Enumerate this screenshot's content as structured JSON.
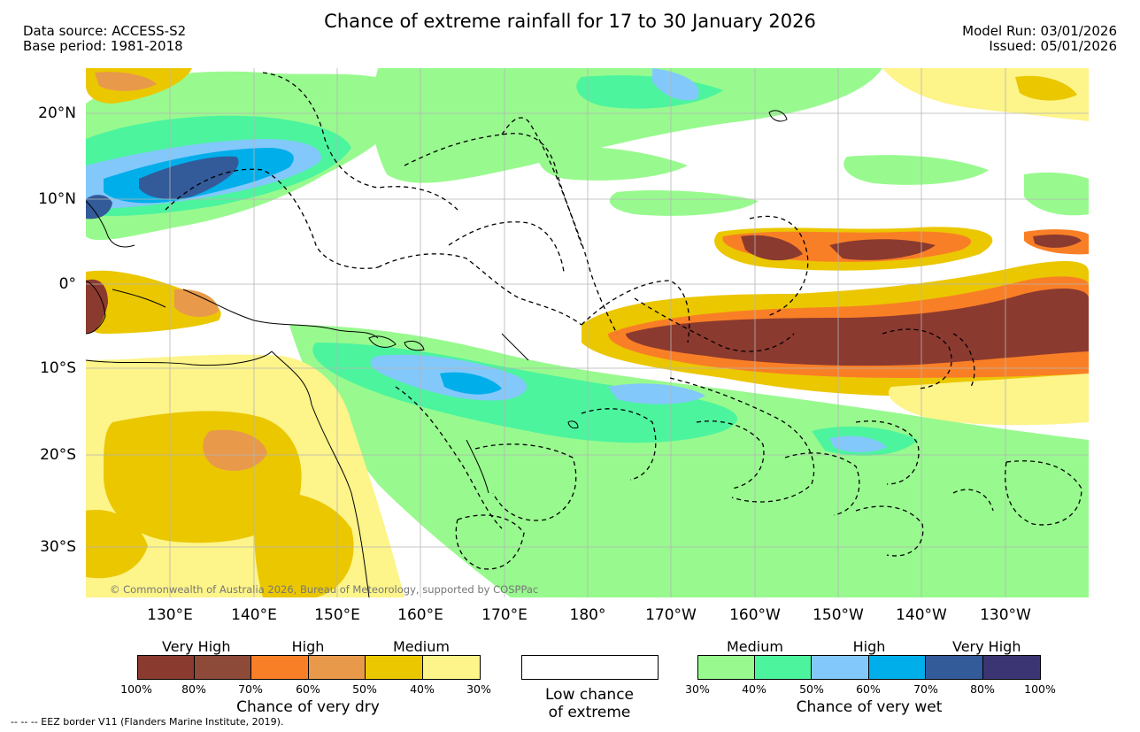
{
  "title": "Chance of extreme rainfall for 17 to 30 January 2026",
  "header": {
    "data_source": "Data source: ACCESS-S2",
    "base_period": "Base period: 1981-2018",
    "model_run": "Model Run: 03/01/2026",
    "issued": "Issued: 05/01/2026"
  },
  "map": {
    "lat_labels": [
      "20°N",
      "10°N",
      "0°",
      "10°S",
      "20°S",
      "30°S"
    ],
    "lon_labels": [
      "130°E",
      "140°E",
      "150°E",
      "160°E",
      "170°E",
      "180°",
      "170°W",
      "160°W",
      "150°W",
      "140°W",
      "130°W"
    ],
    "copyright": "© Commonwealth of Australia 2026, Bureau of Meteorology, supported by COSPPac"
  },
  "legend": {
    "dry": {
      "headers": [
        "Very High",
        "High",
        "Medium"
      ],
      "colors": [
        "#8b3a2f",
        "#8e4a38",
        "#f97f26",
        "#e8994a",
        "#ebc700",
        "#fdf48a"
      ],
      "ticks": [
        "100%",
        "80%",
        "70%",
        "60%",
        "50%",
        "40%",
        "30%"
      ],
      "title": "Chance of very dry"
    },
    "low": {
      "title_line1": "Low chance",
      "title_line2": "of extreme"
    },
    "wet": {
      "headers": [
        "Medium",
        "High",
        "Very High"
      ],
      "colors": [
        "#98fa8e",
        "#4cf49e",
        "#83c8fb",
        "#00aeea",
        "#335a99",
        "#3b3673"
      ],
      "ticks": [
        "30%",
        "40%",
        "50%",
        "60%",
        "70%",
        "80%",
        "100%"
      ],
      "title": "Chance of very wet"
    }
  },
  "eez_note": "-- -- -- EEZ border V11 (Flanders Marine Institute, 2019).",
  "colors": {
    "very_dry": "#8b3a2f",
    "dry_high": "#f97f26",
    "dry_medium": "#ebc700",
    "dry_low": "#fdf48a",
    "wet_medium": "#98fa8e",
    "wet_medium_hi": "#4cf49e",
    "wet_high": "#83c8fb",
    "wet_high_hi": "#00aeea",
    "wet_very_high": "#335a99"
  }
}
